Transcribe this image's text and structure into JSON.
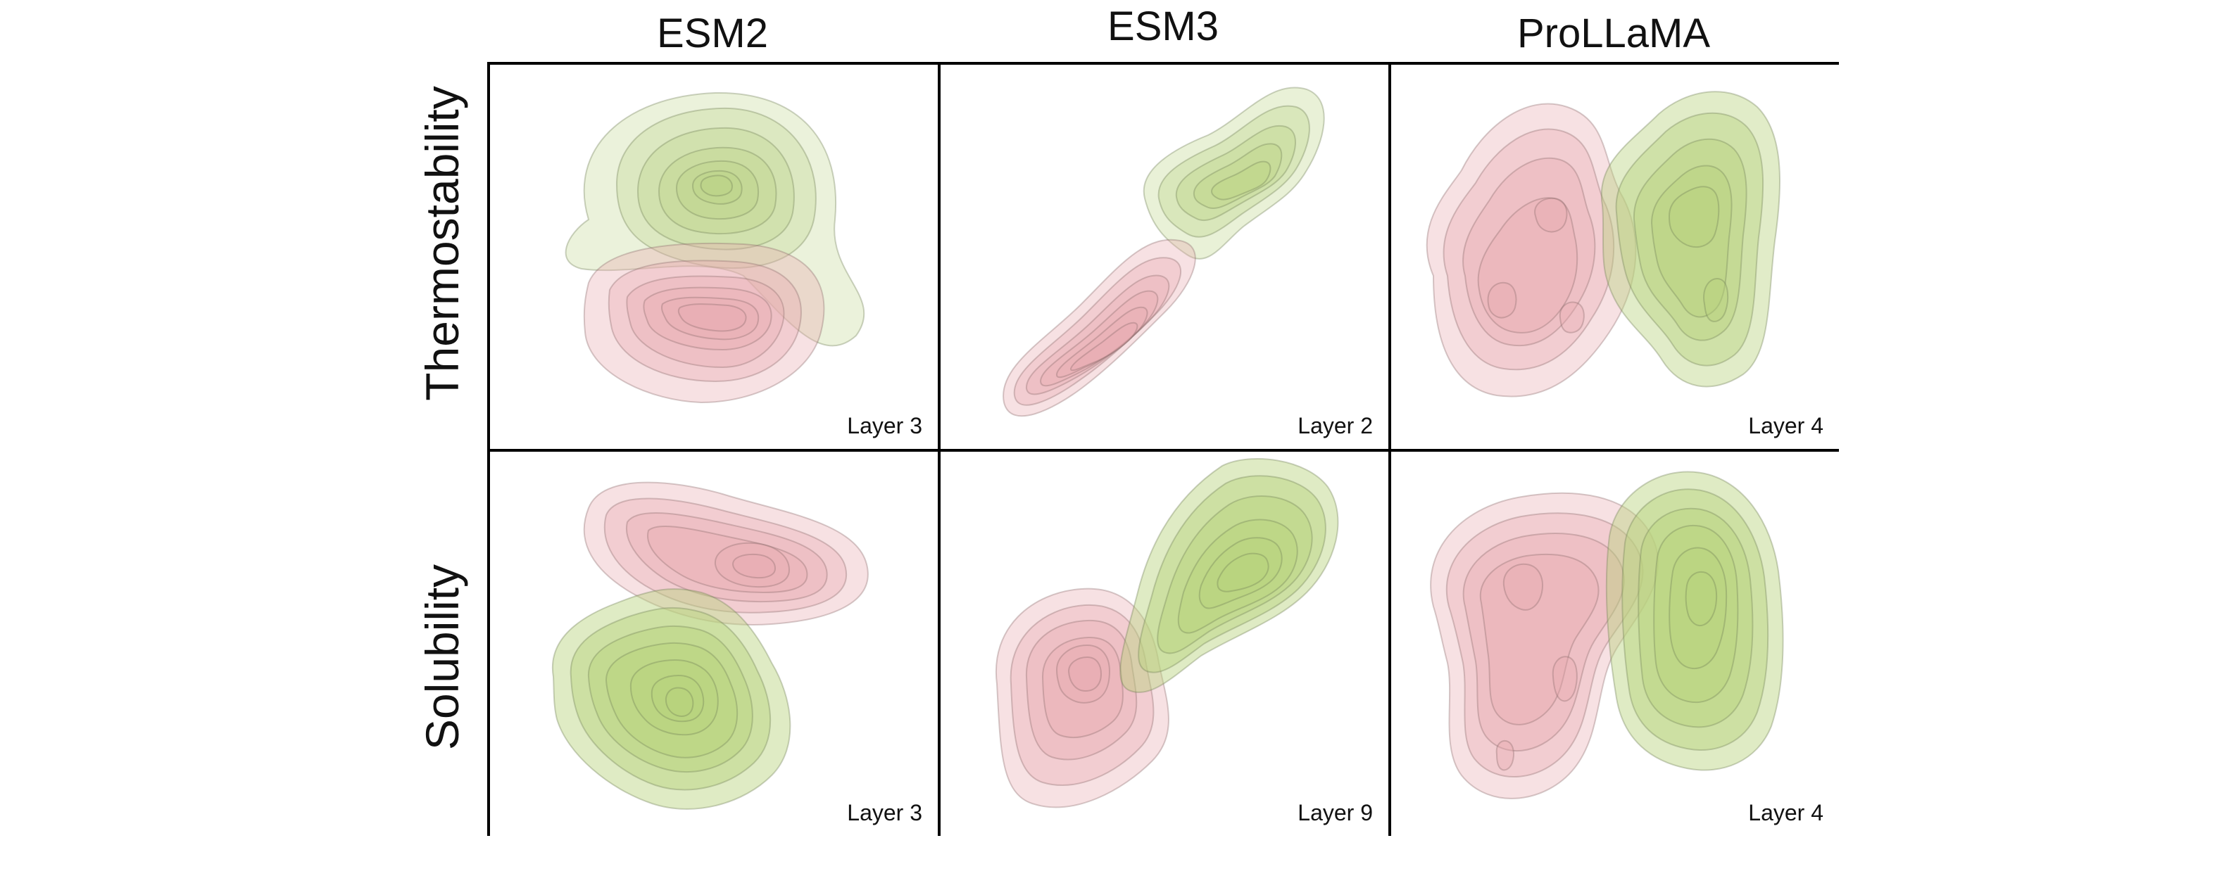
{
  "columns": [
    {
      "title": "ESM2"
    },
    {
      "title": "ESM3"
    },
    {
      "title": "ProLLaMA"
    }
  ],
  "rows": [
    {
      "title": "Thermostability"
    },
    {
      "title": "Solubility"
    }
  ],
  "panels": [
    {
      "layer_label": "Layer 3"
    },
    {
      "layer_label": "Layer 2"
    },
    {
      "layer_label": "Layer 4"
    },
    {
      "layer_label": "Layer 3"
    },
    {
      "layer_label": "Layer 9"
    },
    {
      "layer_label": "Layer 4"
    }
  ],
  "colors": {
    "red": "#e8aaae",
    "green": "#b7d27c",
    "contour": "#7a7a6a",
    "frame": "#000000"
  }
}
